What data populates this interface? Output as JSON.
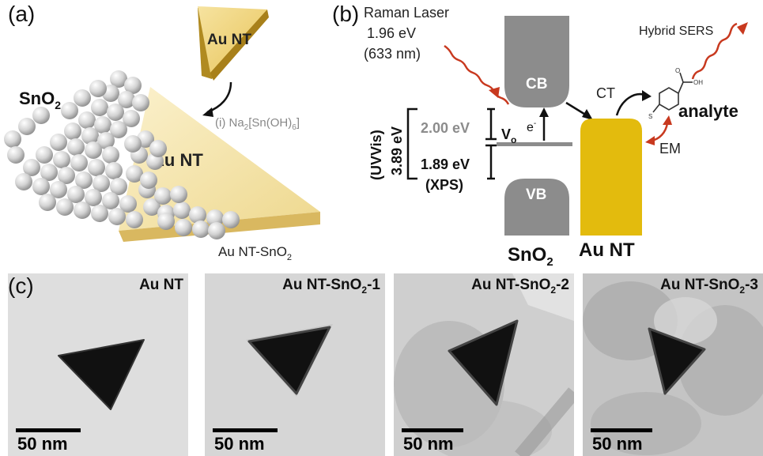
{
  "panel_a": {
    "label": "(a)",
    "material_label": "SnO",
    "material_sub": "2",
    "nt_small_label": "Au NT",
    "nt_large_label": "Au NT",
    "step_label": "(i) Na",
    "step_sub": "2",
    "step_rest": "[Sn(OH)",
    "step_sub2": "6",
    "step_end": "]",
    "product_label": "Au NT-SnO",
    "product_sub": "2"
  },
  "panel_b": {
    "label": "(b)",
    "laser_line1": "Raman Laser",
    "laser_line2": "1.96 eV",
    "laser_line3": "(633 nm)",
    "hybrid_label": "Hybrid SERS",
    "cb_label": "CB",
    "vb_label": "VB",
    "ct_label": "CT",
    "em_label": "EM",
    "analyte_label": "analyte",
    "electron_label": "e",
    "electron_sup": "-",
    "vacancy_label": "V",
    "vacancy_sub": "o",
    "uvvis_label": "(UVVis)",
    "uvvis_value": "3.89 eV",
    "gap_upper": "2.00 eV",
    "gap_lower": "1.89 eV",
    "xps_label": "(XPS)",
    "sno2_label": "SnO",
    "sno2_sub": "2",
    "aunt_label": "Au NT",
    "colors": {
      "band_gray": "#8c8c8c",
      "gold": "#e3bb0d",
      "laser_red": "#c8391f"
    }
  },
  "panel_c": {
    "label": "(c)",
    "images": [
      {
        "title": "Au NT",
        "title_sub": "",
        "title_suffix": "",
        "scale": "50 nm"
      },
      {
        "title": "Au NT-SnO",
        "title_sub": "2",
        "title_suffix": "-1",
        "scale": "50 nm"
      },
      {
        "title": "Au NT-SnO",
        "title_sub": "2",
        "title_suffix": "-2",
        "scale": "50 nm"
      },
      {
        "title": "Au NT-SnO",
        "title_sub": "2",
        "title_suffix": "-3",
        "scale": "50 nm"
      }
    ]
  }
}
